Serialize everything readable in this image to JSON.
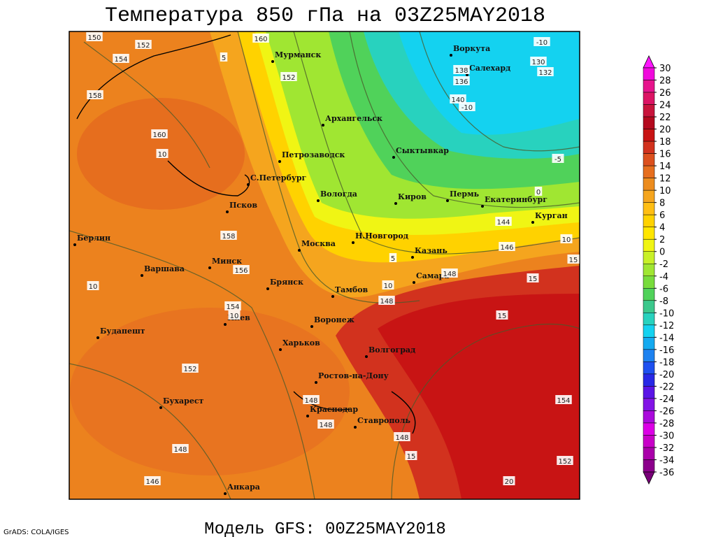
{
  "header": {
    "title": "Температура 850 гПа на 03Z25MAY2018"
  },
  "footer": {
    "model": "Модель GFS: 00Z25MAY2018",
    "credit": "GrADS: COLA/IGES"
  },
  "map": {
    "cities": [
      "Мурманск",
      "Воркута",
      "Салехард",
      "Архангельск",
      "Петрозаводск",
      "Сыктывкар",
      "С.Петербург",
      "Вологда",
      "Киров",
      "Пермь",
      "Екатеринбург",
      "Псков",
      "Курган",
      "Берлин",
      "Н.Новгород",
      "Москва",
      "Казань",
      "Варшава",
      "Минск",
      "Самара",
      "Брянск",
      "Тамбов",
      "Киев",
      "Воронеж",
      "Будапешт",
      "Харьков",
      "Волгоград",
      "Ростов-на-Дону",
      "Бухарест",
      "Краснодар",
      "Ставрополь",
      "Анкара"
    ],
    "height_labels": [
      150,
      152,
      154,
      158,
      160,
      152,
      160,
      138,
      136,
      140,
      130,
      132,
      144,
      146,
      148,
      148,
      156,
      158,
      154,
      152,
      148,
      148,
      148,
      148,
      146,
      154,
      152
    ],
    "temperature_labels": [
      -10,
      -10,
      -5,
      0,
      5,
      5,
      10,
      10,
      15,
      15,
      15,
      15,
      20,
      10,
      10,
      10
    ]
  },
  "colorbar": {
    "ticks": [
      30,
      28,
      26,
      24,
      22,
      20,
      18,
      16,
      14,
      12,
      10,
      8,
      6,
      4,
      2,
      0,
      -2,
      -4,
      -6,
      -8,
      -10,
      -12,
      -14,
      -16,
      -18,
      -20,
      -22,
      -24,
      -26,
      -28,
      -30,
      -32,
      -34,
      -36
    ],
    "colors": [
      "#ff14ff",
      "#f00adc",
      "#e6148c",
      "#dc1464",
      "#c8143c",
      "#b40a1e",
      "#c81414",
      "#d2321e",
      "#dc501e",
      "#e66e1e",
      "#ec8c1e",
      "#f5a51e",
      "#ffbe14",
      "#ffd200",
      "#ffe600",
      "#f0f514",
      "#c8f028",
      "#a0e632",
      "#78dc3c",
      "#50d25a",
      "#3cc88c",
      "#28d2be",
      "#14d2f0",
      "#14aaf0",
      "#1e82f0",
      "#1e50f0",
      "#2828e6",
      "#5a14e6",
      "#8214e6",
      "#aa0adc",
      "#dc00e6",
      "#c800c8",
      "#aa00aa",
      "#8c008c",
      "#780078"
    ]
  }
}
